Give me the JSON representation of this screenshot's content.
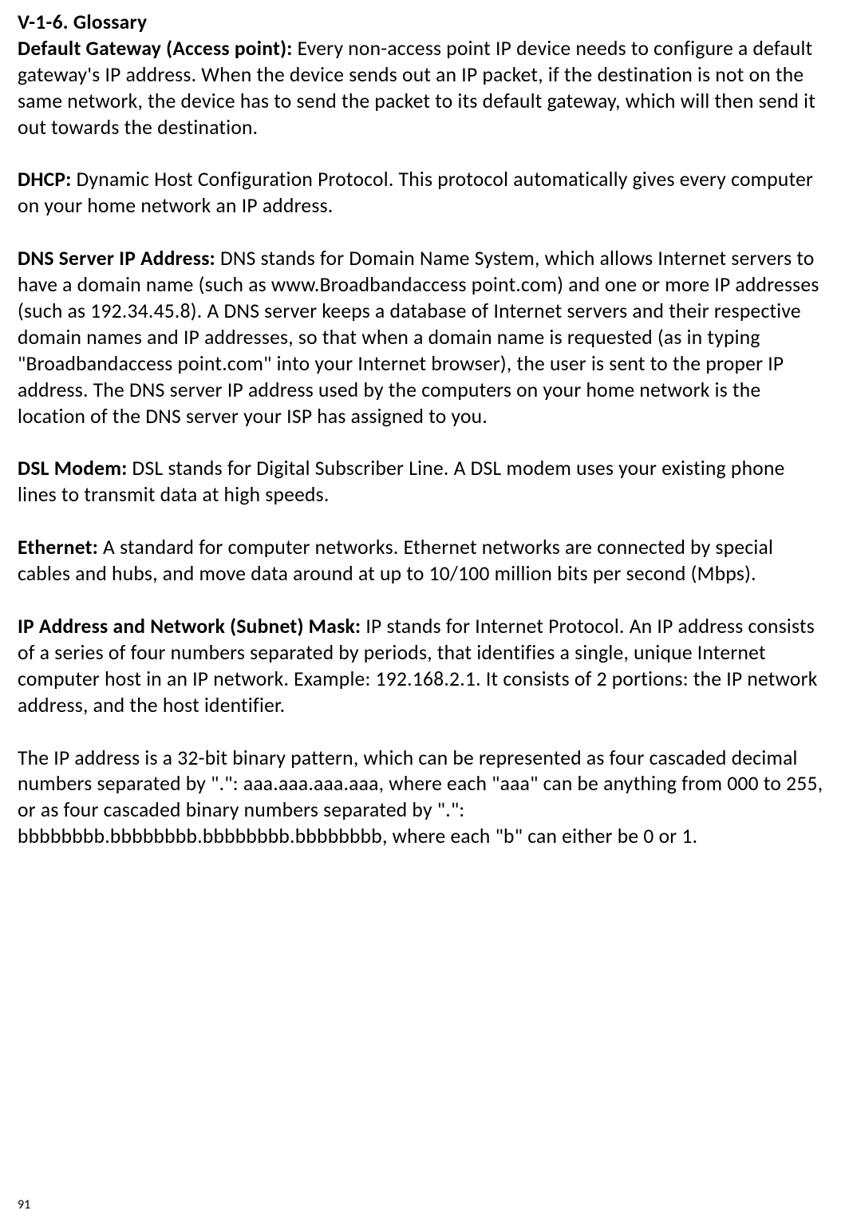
{
  "heading": "V-1-6.   Glossary",
  "entries": [
    {
      "term": "Default Gateway (Access point):",
      "definition": " Every non-access point IP device needs to configure a default gateway's IP address. When the device sends out an IP packet, if the destination is not on the same network, the device has to send the packet to its default gateway, which will then send it out towards the destination."
    },
    {
      "term": "DHCP:",
      "definition": " Dynamic Host Configuration Protocol. This protocol automatically gives every computer on your home network an IP address."
    },
    {
      "term": "DNS Server IP Address:",
      "definition": " DNS stands for Domain Name System, which allows Internet servers to have a domain name (such as www.Broadbandaccess point.com) and one or more IP addresses (such as 192.34.45.8). A DNS server keeps a database of Internet servers and their respective domain names and IP addresses, so that when a domain name is requested (as in typing \"Broadbandaccess point.com\" into your Internet browser), the user is sent to the proper IP address. The DNS server IP address used by the computers on your home network is the location of the DNS server your ISP has assigned to you."
    },
    {
      "term": "DSL Modem:",
      "definition": " DSL stands for Digital Subscriber Line. A DSL modem uses your existing phone lines to transmit data at high speeds."
    },
    {
      "term": "Ethernet:",
      "definition": " A standard for computer networks. Ethernet networks are connected by special cables and hubs, and move data around at up to 10/100 million bits per second (Mbps)."
    },
    {
      "term": "IP Address and Network (Subnet) Mask:",
      "definition": " IP stands for Internet Protocol. An IP address consists of a series of four numbers separated by periods, that identifies a single, unique Internet computer host in an IP network. Example: 192.168.2.1. It consists of 2 portions: the IP network address, and the host identifier."
    }
  ],
  "extra_paragraph": "The IP address is a 32-bit binary pattern, which can be represented as four cascaded decimal numbers separated by \".\": aaa.aaa.aaa.aaa, where each \"aaa\" can be anything from 000 to 255, or as four cascaded binary numbers separated by \".\": bbbbbbbb.bbbbbbbb.bbbbbbbb.bbbbbbbb, where each \"b\" can either be 0 or 1.",
  "page_number": "91"
}
